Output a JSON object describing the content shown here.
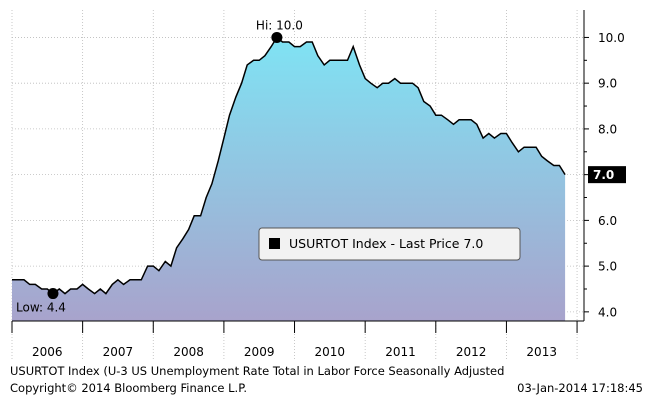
{
  "chart_data": {
    "type": "area",
    "ylim": [
      3.8,
      10.6
    ],
    "yticks": [
      "4.0",
      "5.0",
      "6.0",
      "7.0",
      "8.0",
      "9.0",
      "10.0"
    ],
    "year_labels": [
      "2006",
      "2007",
      "2008",
      "2009",
      "2010",
      "2011",
      "2012",
      "2013"
    ],
    "series": [
      {
        "values": [
          [
            2006.0,
            4.7
          ],
          [
            2006.1,
            4.7
          ],
          [
            2006.17,
            4.7
          ],
          [
            2006.25,
            4.6
          ],
          [
            2006.33,
            4.6
          ],
          [
            2006.42,
            4.5
          ],
          [
            2006.5,
            4.5
          ],
          [
            2006.58,
            4.4
          ],
          [
            2006.67,
            4.5
          ],
          [
            2006.75,
            4.4
          ],
          [
            2006.83,
            4.5
          ],
          [
            2006.92,
            4.5
          ],
          [
            2007.0,
            4.6
          ],
          [
            2007.08,
            4.5
          ],
          [
            2007.17,
            4.4
          ],
          [
            2007.25,
            4.5
          ],
          [
            2007.33,
            4.4
          ],
          [
            2007.42,
            4.6
          ],
          [
            2007.5,
            4.7
          ],
          [
            2007.58,
            4.6
          ],
          [
            2007.67,
            4.7
          ],
          [
            2007.75,
            4.7
          ],
          [
            2007.83,
            4.7
          ],
          [
            2007.92,
            5.0
          ],
          [
            2008.0,
            5.0
          ],
          [
            2008.08,
            4.9
          ],
          [
            2008.17,
            5.1
          ],
          [
            2008.25,
            5.0
          ],
          [
            2008.33,
            5.4
          ],
          [
            2008.42,
            5.6
          ],
          [
            2008.5,
            5.8
          ],
          [
            2008.58,
            6.1
          ],
          [
            2008.67,
            6.1
          ],
          [
            2008.75,
            6.5
          ],
          [
            2008.83,
            6.8
          ],
          [
            2008.92,
            7.3
          ],
          [
            2009.0,
            7.8
          ],
          [
            2009.08,
            8.3
          ],
          [
            2009.17,
            8.7
          ],
          [
            2009.25,
            9.0
          ],
          [
            2009.33,
            9.4
          ],
          [
            2009.42,
            9.5
          ],
          [
            2009.5,
            9.5
          ],
          [
            2009.58,
            9.6
          ],
          [
            2009.67,
            9.8
          ],
          [
            2009.75,
            10.0
          ],
          [
            2009.83,
            9.9
          ],
          [
            2009.92,
            9.9
          ],
          [
            2010.0,
            9.8
          ],
          [
            2010.08,
            9.8
          ],
          [
            2010.17,
            9.9
          ],
          [
            2010.25,
            9.9
          ],
          [
            2010.33,
            9.6
          ],
          [
            2010.42,
            9.4
          ],
          [
            2010.5,
            9.5
          ],
          [
            2010.58,
            9.5
          ],
          [
            2010.67,
            9.5
          ],
          [
            2010.75,
            9.5
          ],
          [
            2010.83,
            9.8
          ],
          [
            2010.92,
            9.4
          ],
          [
            2011.0,
            9.1
          ],
          [
            2011.08,
            9.0
          ],
          [
            2011.17,
            8.9
          ],
          [
            2011.25,
            9.0
          ],
          [
            2011.33,
            9.0
          ],
          [
            2011.42,
            9.1
          ],
          [
            2011.5,
            9.0
          ],
          [
            2011.58,
            9.0
          ],
          [
            2011.67,
            9.0
          ],
          [
            2011.75,
            8.9
          ],
          [
            2011.83,
            8.6
          ],
          [
            2011.92,
            8.5
          ],
          [
            2012.0,
            8.3
          ],
          [
            2012.08,
            8.3
          ],
          [
            2012.17,
            8.2
          ],
          [
            2012.25,
            8.1
          ],
          [
            2012.33,
            8.2
          ],
          [
            2012.42,
            8.2
          ],
          [
            2012.5,
            8.2
          ],
          [
            2012.58,
            8.1
          ],
          [
            2012.67,
            7.8
          ],
          [
            2012.75,
            7.9
          ],
          [
            2012.83,
            7.8
          ],
          [
            2012.92,
            7.9
          ],
          [
            2013.0,
            7.9
          ],
          [
            2013.08,
            7.7
          ],
          [
            2013.17,
            7.5
          ],
          [
            2013.25,
            7.6
          ],
          [
            2013.33,
            7.6
          ],
          [
            2013.42,
            7.6
          ],
          [
            2013.5,
            7.4
          ],
          [
            2013.58,
            7.3
          ],
          [
            2013.67,
            7.2
          ],
          [
            2013.75,
            7.2
          ],
          [
            2013.83,
            7.0
          ]
        ]
      }
    ],
    "annotations": {
      "high_label": "Hi: 10.0",
      "high_x": 2009.75,
      "high_y": 10.0,
      "low_label": "Low: 4.4",
      "low_x": 2006.58,
      "low_y": 4.4,
      "last_value_label": "7.0",
      "last_value": 7.0
    },
    "legend": {
      "text": "USURTOT Index - Last Price  7.0",
      "placement": "bottom-center"
    },
    "grid": true,
    "colors": {
      "area_top": "#7fe3f4",
      "area_bottom": "#a8a3cc",
      "line": "#000000",
      "grid": "#bbbbbb"
    }
  },
  "footer": {
    "title": "USURTOT Index (U-3 US Unemployment Rate Total in Labor Force Seasonally Adjusted",
    "copyright": "Copyright© 2014 Bloomberg Finance L.P.",
    "timestamp": "03-Jan-2014 17:18:45"
  }
}
